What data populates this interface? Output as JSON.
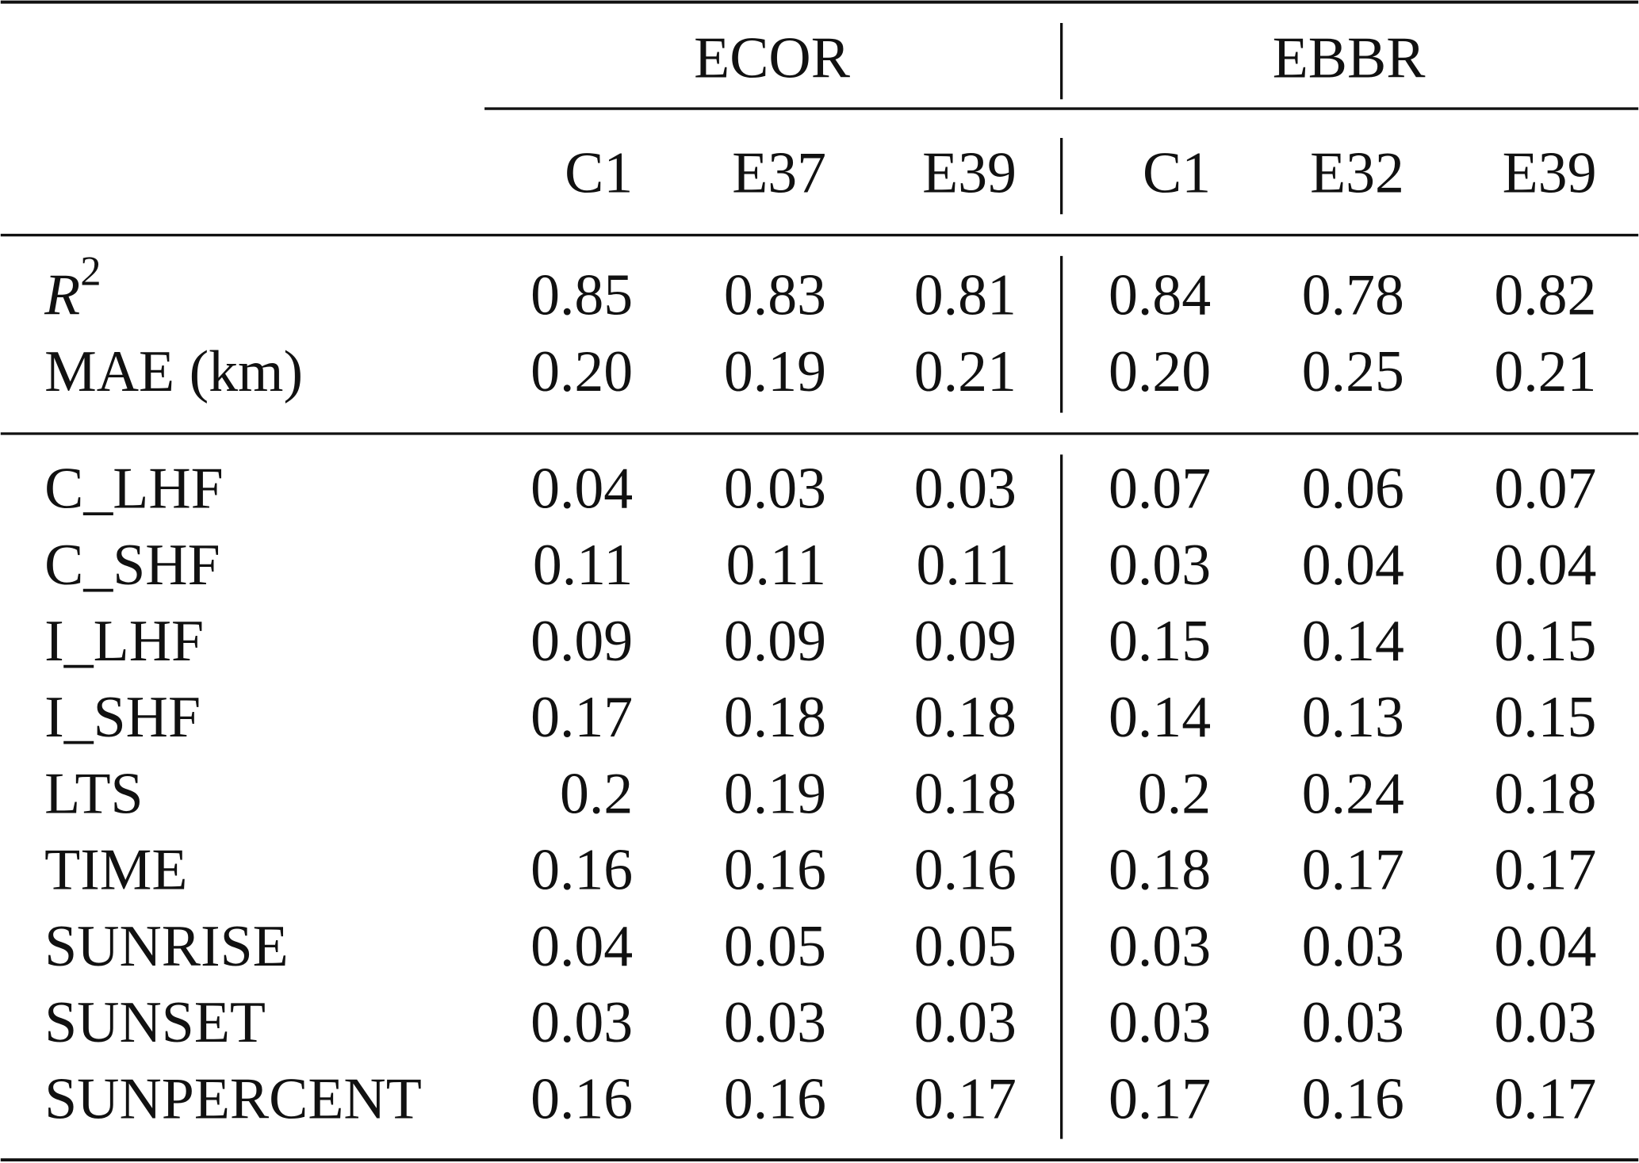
{
  "table": {
    "groups": [
      {
        "name": "ECOR",
        "columns": [
          "C1",
          "E37",
          "E39"
        ]
      },
      {
        "name": "EBBR",
        "columns": [
          "C1",
          "E32",
          "E39"
        ]
      }
    ],
    "metrics": [
      {
        "label": {
          "text": "R",
          "sup": "2"
        },
        "values": [
          "0.85",
          "0.83",
          "0.81",
          "0.84",
          "0.78",
          "0.82"
        ]
      },
      {
        "label": "MAE (km)",
        "values": [
          "0.20",
          "0.19",
          "0.21",
          "0.20",
          "0.25",
          "0.21"
        ]
      }
    ],
    "importances": [
      {
        "label": "C_LHF",
        "values": [
          "0.04",
          "0.03",
          "0.03",
          "0.07",
          "0.06",
          "0.07"
        ]
      },
      {
        "label": "C_SHF",
        "values": [
          "0.11",
          "0.11",
          "0.11",
          "0.03",
          "0.04",
          "0.04"
        ]
      },
      {
        "label": "I_LHF",
        "values": [
          "0.09",
          "0.09",
          "0.09",
          "0.15",
          "0.14",
          "0.15"
        ]
      },
      {
        "label": "I_SHF",
        "values": [
          "0.17",
          "0.18",
          "0.18",
          "0.14",
          "0.13",
          "0.15"
        ]
      },
      {
        "label": "LTS",
        "values": [
          "0.2",
          "0.19",
          "0.18",
          "0.2",
          "0.24",
          "0.18"
        ]
      },
      {
        "label": "TIME",
        "values": [
          "0.16",
          "0.16",
          "0.16",
          "0.18",
          "0.17",
          "0.17"
        ]
      },
      {
        "label": "SUNRISE",
        "values": [
          "0.04",
          "0.05",
          "0.05",
          "0.03",
          "0.03",
          "0.04"
        ]
      },
      {
        "label": "SUNSET",
        "values": [
          "0.03",
          "0.03",
          "0.03",
          "0.03",
          "0.03",
          "0.03"
        ]
      },
      {
        "label": "SUNPERCENT",
        "values": [
          "0.16",
          "0.16",
          "0.17",
          "0.17",
          "0.16",
          "0.17"
        ]
      }
    ]
  }
}
